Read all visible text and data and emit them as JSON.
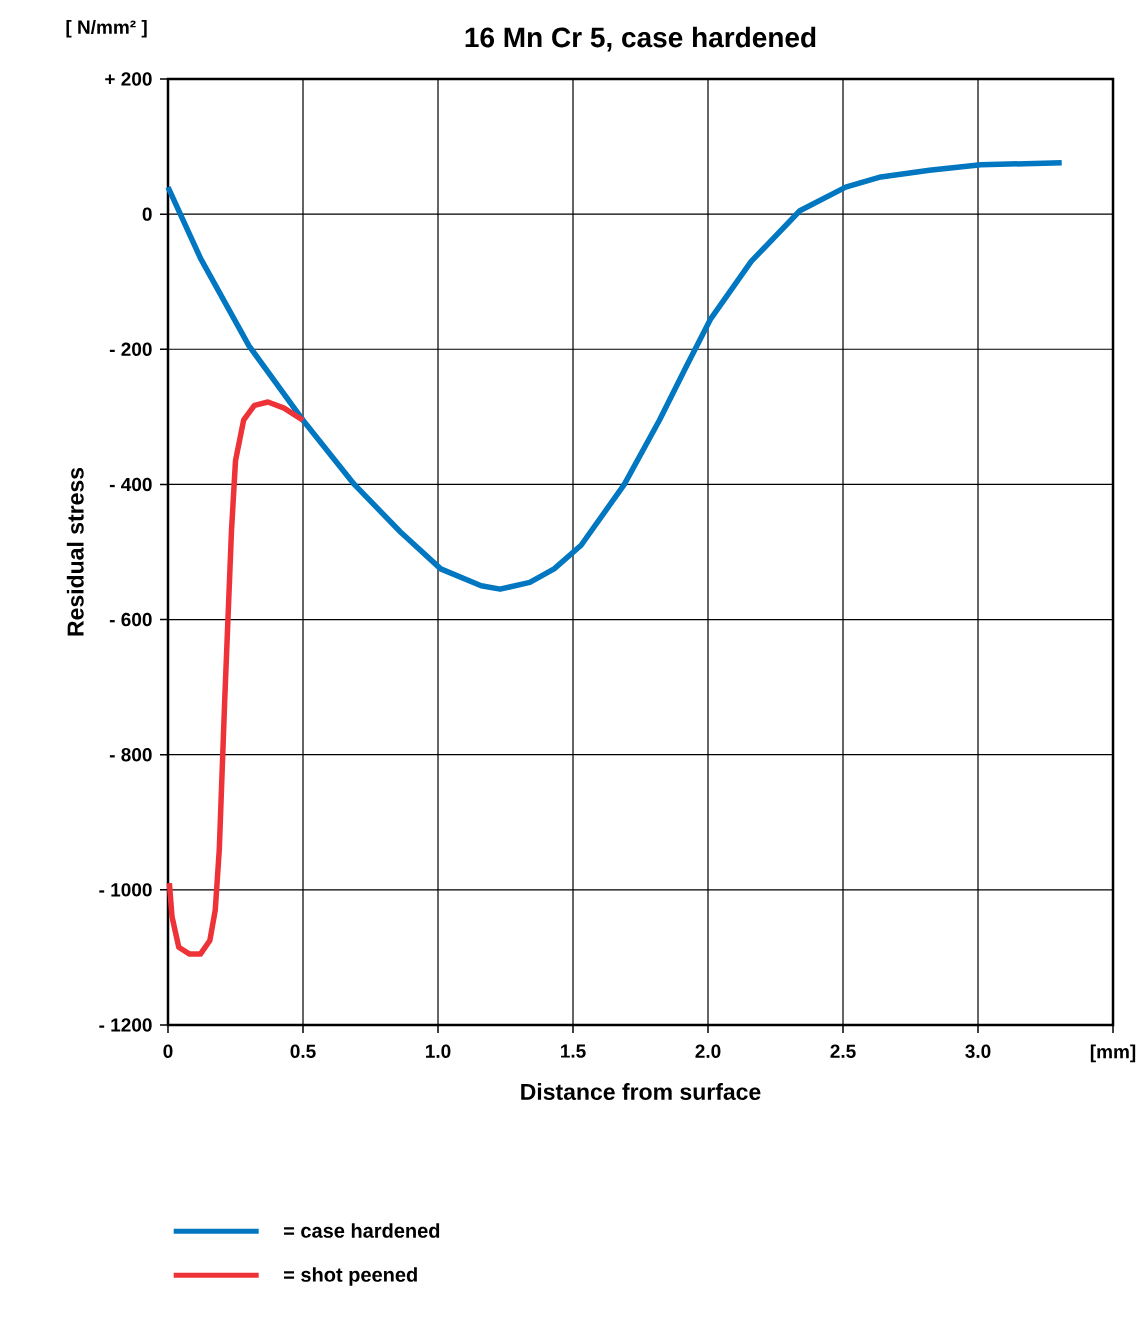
{
  "chart_data": {
    "type": "line",
    "title": "16 Mn Cr 5,  case hardened",
    "xlabel": "Distance from surface",
    "ylabel": "Residual stress",
    "annotations": [
      "[ N/mm² ]"
    ],
    "xlim": [
      0,
      3.5
    ],
    "ylim": [
      -1200,
      200
    ],
    "xticks": [
      0,
      0.5,
      {
        "value": 1,
        "label": "1.0"
      },
      1.5,
      {
        "value": 2,
        "label": "2.0"
      },
      2.5,
      {
        "value": 3,
        "label": "3.0"
      },
      {
        "value": 3.5,
        "label": "[mm]"
      }
    ],
    "yticks": [
      {
        "value": 200,
        "label": "+ 200"
      },
      0,
      {
        "value": -200,
        "label": "- 200"
      },
      {
        "value": -400,
        "label": "- 400"
      },
      {
        "value": -600,
        "label": "- 600"
      },
      {
        "value": -800,
        "label": "- 800"
      },
      {
        "value": -1000,
        "label": "- 1000"
      },
      {
        "value": -1200,
        "label": "- 1200"
      }
    ],
    "grid": true,
    "legend": "bottom",
    "marker": "none",
    "line_style": "solid",
    "series": [
      {
        "name": "= case hardened",
        "color": "#0077c0",
        "x": [
          0,
          0.12,
          0.3,
          0.5,
          0.69,
          0.86,
          1.01,
          1.16,
          1.23,
          1.34,
          1.43,
          1.53,
          1.69,
          1.82,
          1.92,
          2.01,
          2.16,
          2.34,
          2.51,
          2.64,
          2.82,
          3.01,
          3.31
        ],
        "values": [
          40,
          -65,
          -195,
          -305,
          -400,
          -470,
          -525,
          -550,
          -555,
          -545,
          -525,
          -490,
          -400,
          -305,
          -225,
          -155,
          -70,
          5,
          40,
          55,
          65,
          73,
          76
        ]
      },
      {
        "name": "= shot peened",
        "color": "#ee3338",
        "x": [
          0.005,
          0.015,
          0.04,
          0.08,
          0.12,
          0.155,
          0.175,
          0.19,
          0.21,
          0.235,
          0.25,
          0.28,
          0.32,
          0.37,
          0.43,
          0.5
        ],
        "values": [
          -990,
          -1040,
          -1085,
          -1095,
          -1095,
          -1075,
          -1030,
          -940,
          -720,
          -470,
          -365,
          -305,
          -283,
          -278,
          -287,
          -305
        ]
      }
    ]
  }
}
